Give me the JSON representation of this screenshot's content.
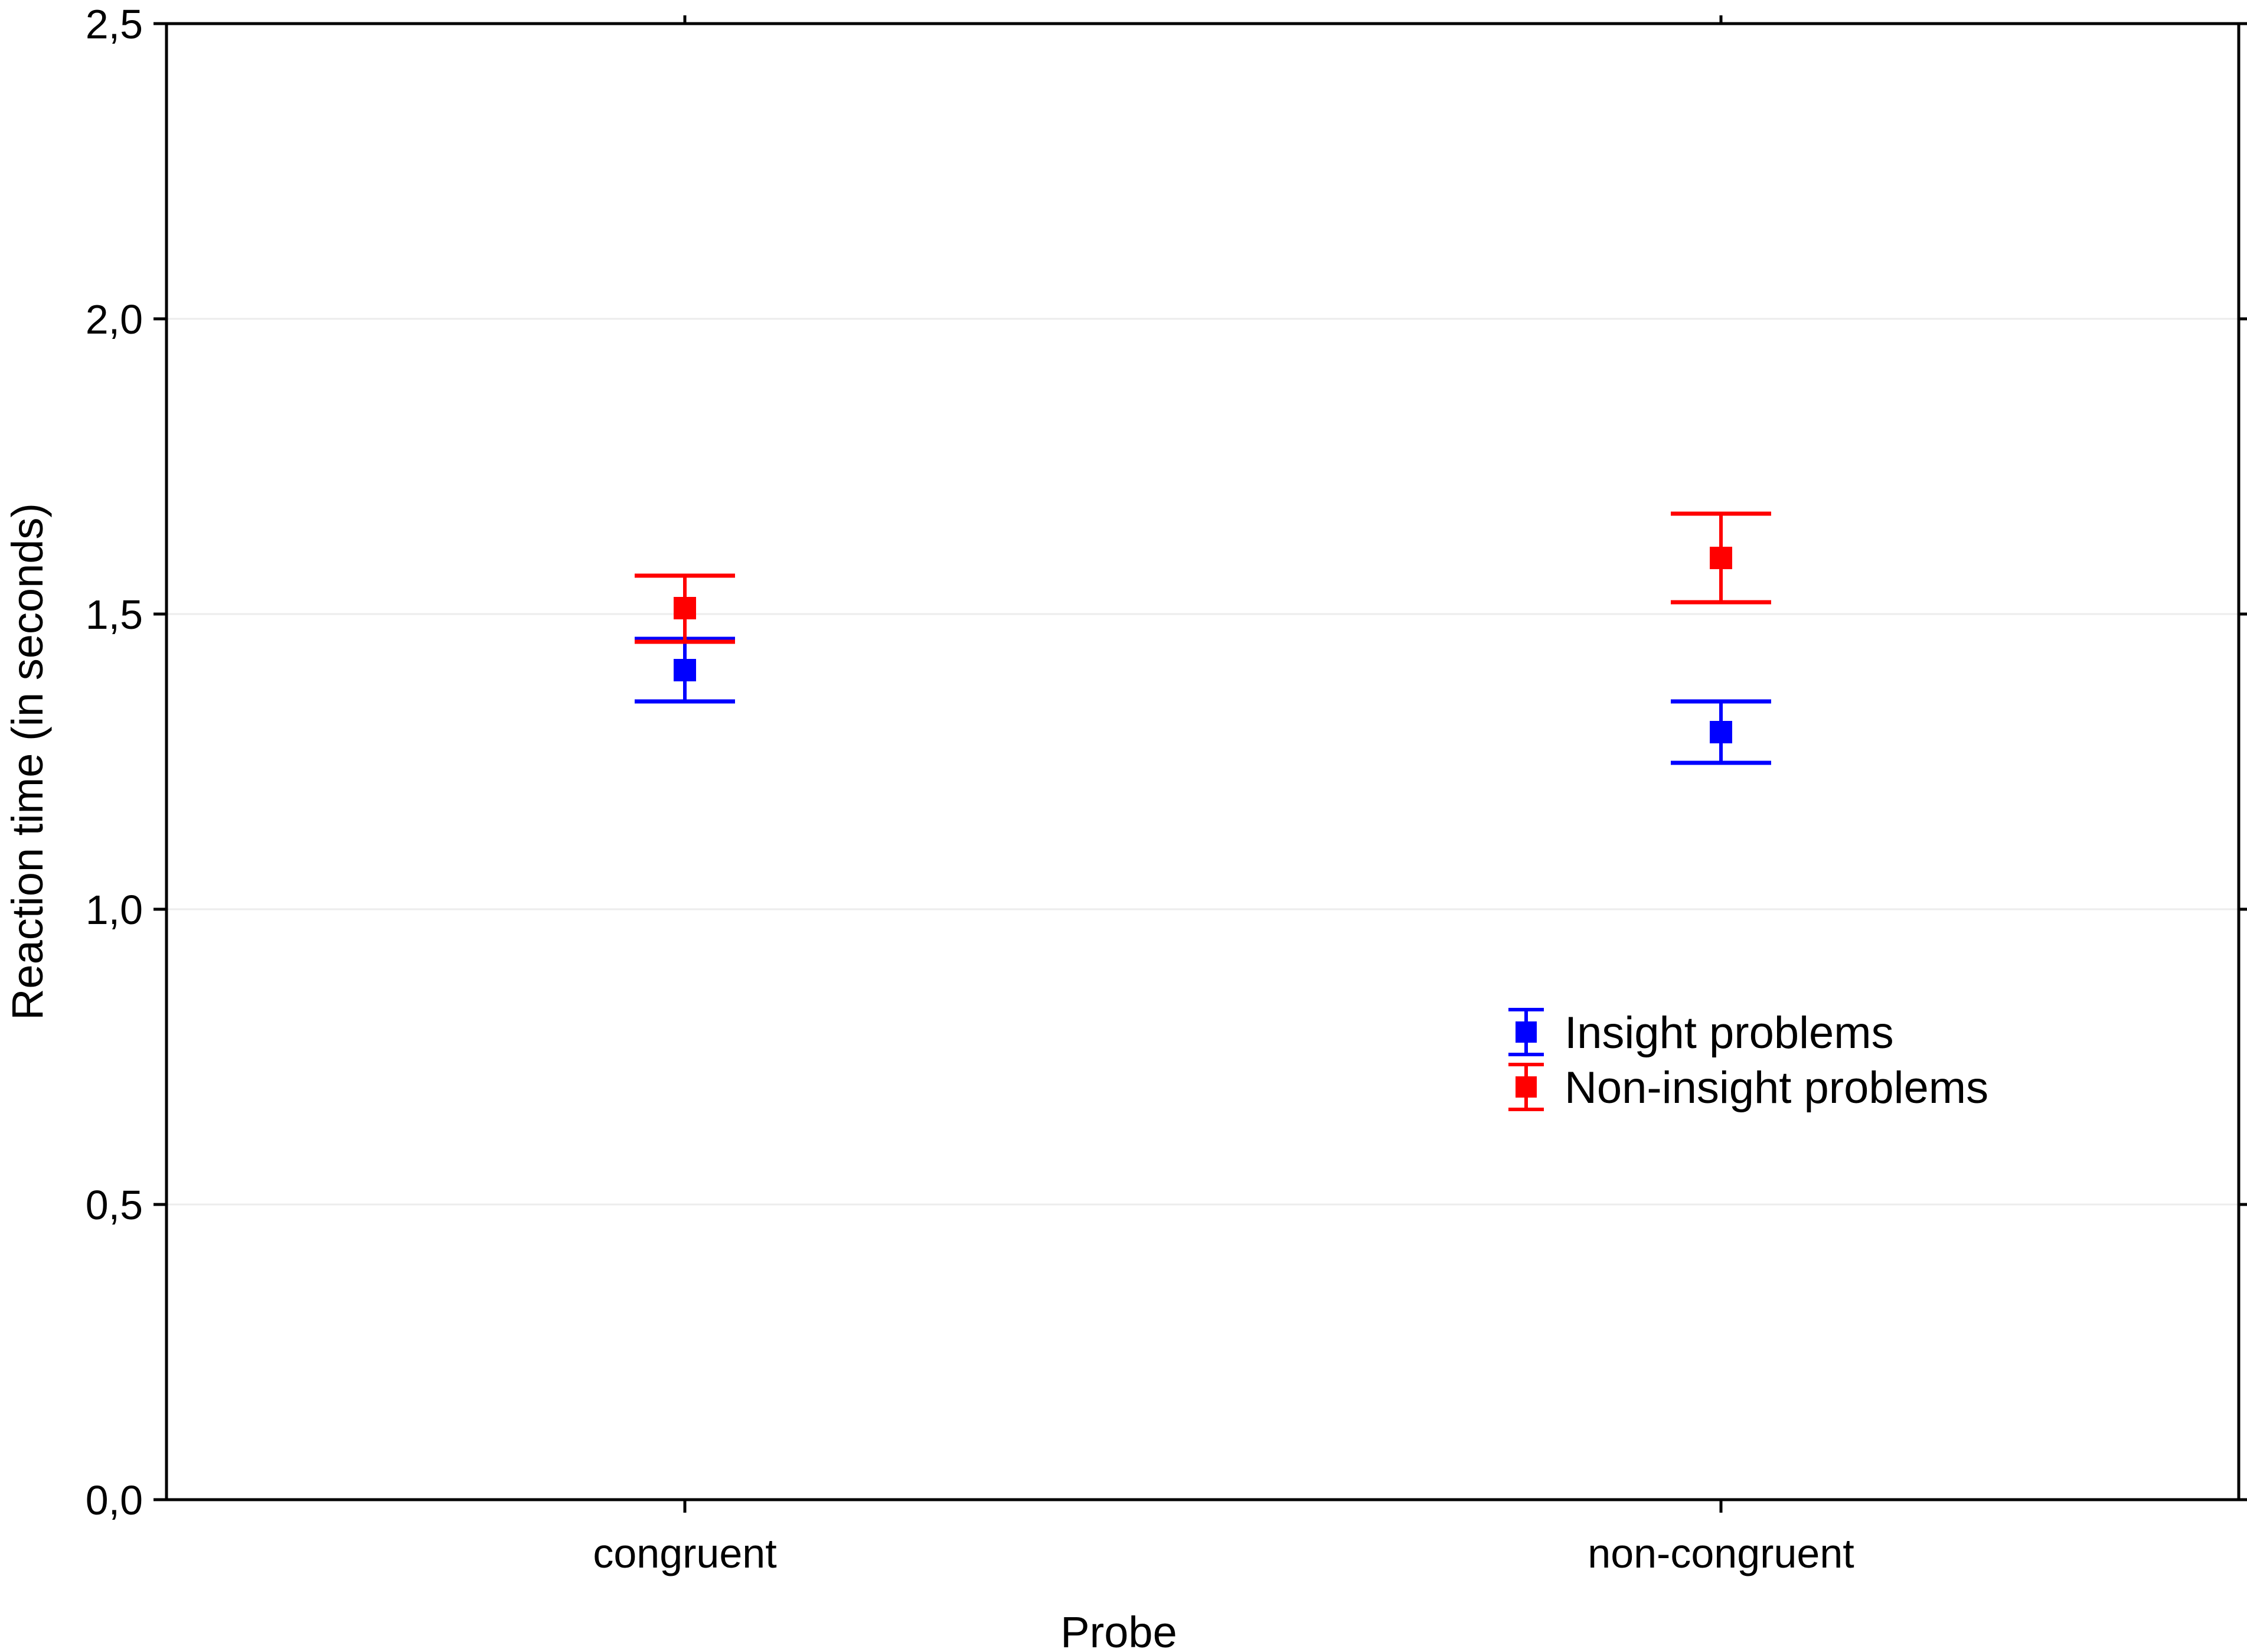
{
  "chart_data": {
    "type": "scatter",
    "title": "",
    "xlabel": "Probe",
    "ylabel": "Reaction time (in seconds)",
    "categories": [
      "congruent",
      "non-congruent"
    ],
    "ylim": [
      0,
      2.5
    ],
    "yticks": [
      {
        "value": 0.0,
        "label": "0,0"
      },
      {
        "value": 0.5,
        "label": "0,5"
      },
      {
        "value": 1.0,
        "label": "1,0"
      },
      {
        "value": 1.5,
        "label": "1,5"
      },
      {
        "value": 2.0,
        "label": "2,0"
      },
      {
        "value": 2.5,
        "label": "2,5"
      }
    ],
    "grid": true,
    "legend_position": "center-right",
    "series": [
      {
        "name": "Insight problems",
        "color": "#0000ff",
        "marker": "square",
        "values": [
          1.405,
          1.3
        ],
        "error_low": [
          1.352,
          1.248
        ],
        "error_high": [
          1.458,
          1.352
        ]
      },
      {
        "name": "Non-insight problems",
        "color": "#ff0000",
        "marker": "square",
        "values": [
          1.51,
          1.595
        ],
        "error_low": [
          1.453,
          1.52
        ],
        "error_high": [
          1.565,
          1.67
        ]
      }
    ]
  }
}
